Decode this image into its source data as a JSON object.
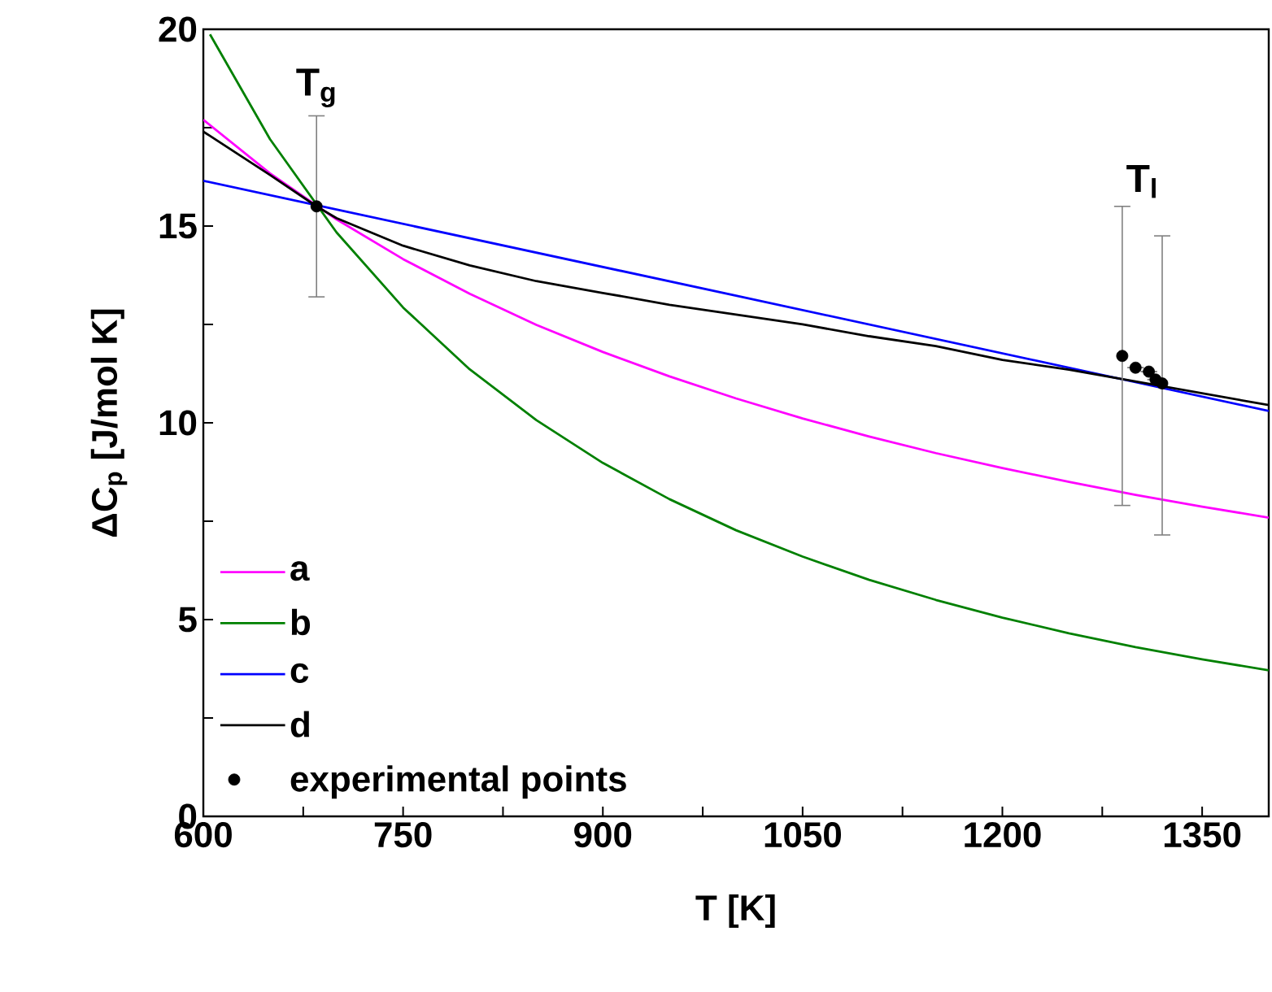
{
  "chart_data": {
    "type": "line",
    "xlabel": "T [K]",
    "ylabel": "ΔC$_{p}$ [J/mol K]",
    "xlim": [
      600,
      1400
    ],
    "ylim": [
      0,
      20
    ],
    "xticks": [
      600,
      {
        "value": 675,
        "label": null
      },
      750,
      {
        "value": 825,
        "label": null
      },
      900,
      {
        "value": 975,
        "label": null
      },
      1050,
      {
        "value": 1125,
        "label": null
      },
      1200,
      {
        "value": 1275,
        "label": null
      },
      1350
    ],
    "yticks": [
      0,
      {
        "value": 2.5,
        "label": null
      },
      5,
      {
        "value": 7.5,
        "label": null
      },
      10,
      {
        "value": 12.5,
        "label": null
      },
      15,
      {
        "value": 17.5,
        "label": null
      },
      20
    ],
    "grid": false,
    "legend": "bottom left",
    "line_style": "solid",
    "series": [
      {
        "name": "a",
        "color": "#ff00ff",
        "x": [
          600,
          650,
          700,
          750,
          800,
          850,
          900,
          950,
          1000,
          1050,
          1100,
          1150,
          1200,
          1250,
          1300,
          1350,
          1400
        ],
        "values": [
          17.7,
          16.34,
          15.17,
          14.16,
          13.28,
          12.49,
          11.8,
          11.18,
          10.62,
          10.11,
          9.65,
          9.23,
          8.85,
          8.5,
          8.17,
          7.87,
          7.59
        ]
      },
      {
        "name": "b",
        "color": "#008000",
        "x": [
          605,
          650,
          700,
          750,
          800,
          850,
          900,
          950,
          1000,
          1050,
          1100,
          1150,
          1200,
          1250,
          1300,
          1350,
          1400
        ],
        "values": [
          19.87,
          17.21,
          14.84,
          12.93,
          11.36,
          10.07,
          8.98,
          8.06,
          7.27,
          6.6,
          6.01,
          5.5,
          5.05,
          4.65,
          4.3,
          3.99,
          3.71
        ]
      },
      {
        "name": "c",
        "color": "#0000ff",
        "x": [
          600,
          1000,
          1400
        ],
        "values": [
          16.15,
          13.23,
          10.3
        ]
      },
      {
        "name": "d",
        "color": "#000000",
        "x": [
          600,
          650,
          685,
          700,
          750,
          800,
          850,
          900,
          950,
          1000,
          1050,
          1100,
          1150,
          1200,
          1250,
          1300,
          1350,
          1400
        ],
        "values": [
          17.4,
          16.3,
          15.5,
          15.2,
          14.5,
          14.0,
          13.6,
          13.3,
          13.0,
          12.75,
          12.5,
          12.2,
          11.95,
          11.6,
          11.35,
          11.05,
          10.75,
          10.45
        ]
      },
      {
        "name": "experimental points",
        "type": "scatter",
        "marker": "circle",
        "color": "#000000",
        "x": [
          685,
          1290,
          1300,
          1310,
          1315,
          1320
        ],
        "values": [
          15.5,
          11.7,
          11.4,
          11.3,
          11.1,
          11.0
        ],
        "errors": [
          [
            13.2,
            17.8
          ],
          [
            7.9,
            15.5
          ],
          null,
          null,
          null,
          [
            7.15,
            14.75
          ]
        ]
      }
    ],
    "annotations": [
      "T$_{g}$",
      "T$_{l}$"
    ]
  }
}
